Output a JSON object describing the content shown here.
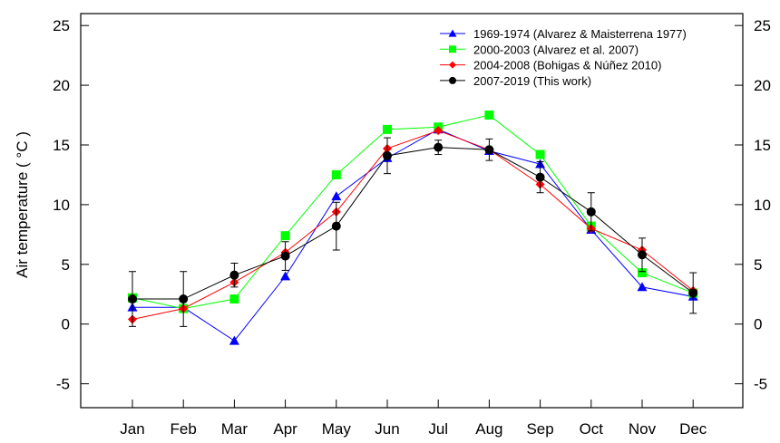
{
  "chart_data": {
    "type": "line",
    "title": "",
    "xlabel": "",
    "ylabel": "Air temperature ( °C )",
    "categories": [
      "Jan",
      "Feb",
      "Mar",
      "Apr",
      "May",
      "Jun",
      "Jul",
      "Aug",
      "Sep",
      "Oct",
      "Nov",
      "Dec"
    ],
    "ylim": [
      -7,
      26
    ],
    "yticks": [
      "-5",
      "0",
      "5",
      "10",
      "15",
      "20",
      "25"
    ],
    "ytick_values": [
      -5,
      0,
      5,
      10,
      15,
      20,
      25
    ],
    "grid": false,
    "legend_position": "top-right",
    "series": [
      {
        "name": "1969-1974 (Alvarez & Maisterrena 1977)",
        "color": "#0000ff",
        "marker": "triangle",
        "values": [
          1.4,
          1.4,
          -1.4,
          4.0,
          10.7,
          13.9,
          16.3,
          14.5,
          13.4,
          7.9,
          3.1,
          2.3
        ]
      },
      {
        "name": "2000-2003 (Alvarez et al. 2007)",
        "color": "#00ff00",
        "marker": "square",
        "values": [
          2.2,
          1.3,
          2.1,
          7.4,
          12.5,
          16.3,
          16.5,
          17.5,
          14.2,
          8.2,
          4.3,
          2.6
        ]
      },
      {
        "name": "2004-2008 (Bohigas & Núñez 2010)",
        "color": "#ff0000",
        "marker": "diamond",
        "values": [
          0.4,
          1.3,
          3.5,
          6.0,
          9.4,
          14.7,
          16.2,
          14.6,
          11.7,
          8.0,
          6.2,
          2.8
        ]
      },
      {
        "name": "2007-2019 (This work)",
        "color": "#000000",
        "marker": "circle",
        "values": [
          2.1,
          2.1,
          4.1,
          5.7,
          8.2,
          14.1,
          14.8,
          14.6,
          12.3,
          9.4,
          5.8,
          2.6
        ],
        "error": [
          2.3,
          2.3,
          1.0,
          1.2,
          2.0,
          1.5,
          0.6,
          0.9,
          1.3,
          1.6,
          1.4,
          1.7
        ]
      }
    ]
  }
}
